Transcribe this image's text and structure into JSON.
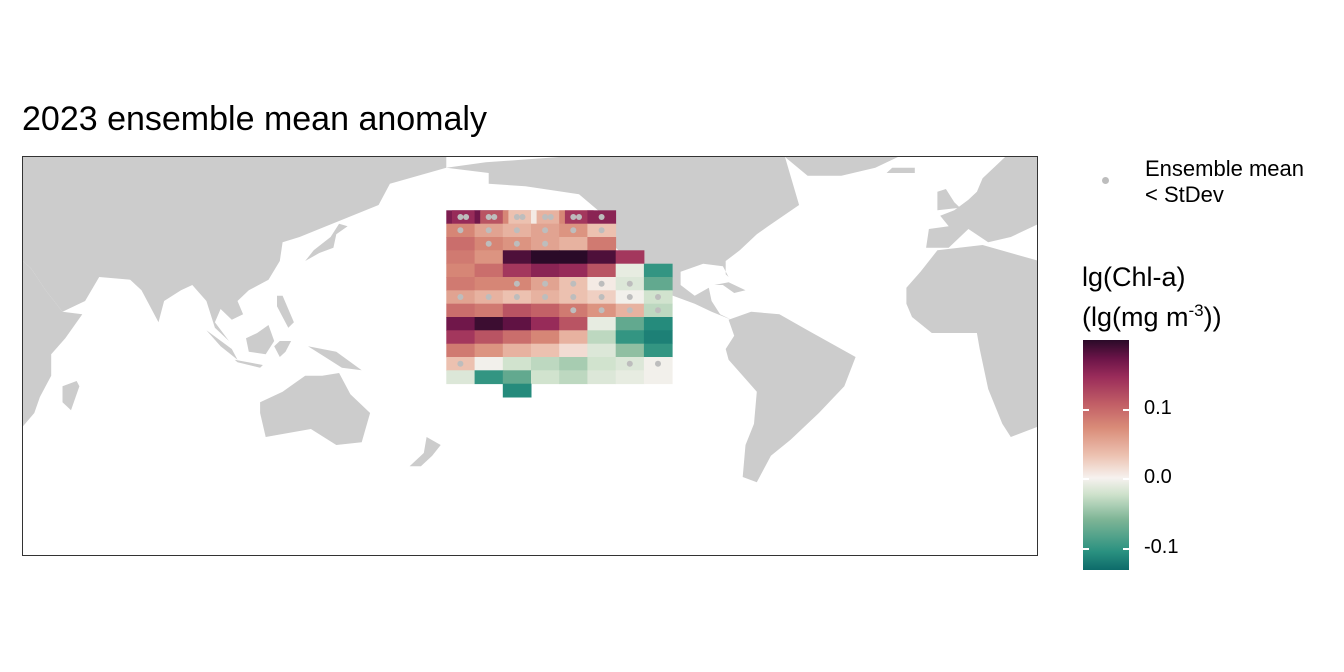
{
  "title": "2023 ensemble mean anomaly",
  "legend": {
    "point_label_line1": "Ensemble mean",
    "point_label_line2": "< StDev",
    "point_color": "#bdbdbd"
  },
  "colorbar": {
    "title_line1": "lg(Chl-a)",
    "title_line2_pre": "(lg(mg m",
    "title_line2_sup": "-3",
    "title_line2_post": "))",
    "ticks": [
      "0.1",
      "0.0",
      "-0.1"
    ],
    "palette": [
      "#0d6b6a",
      "#2a9180",
      "#7eb596",
      "#cfe2cc",
      "#f6f2ef",
      "#ecc1b0",
      "#d98b78",
      "#c25f66",
      "#9a2c5a",
      "#6b1448",
      "#2a0a28"
    ],
    "range": [
      -0.16,
      0.2
    ]
  },
  "chart_data": {
    "type": "heatmap",
    "title": "2023 ensemble mean anomaly",
    "projection": "Pacific-centred world map (longitude 30°E to 390°E)",
    "land_color": "#cccccc",
    "value_label": "lg(Chl-a) (lg(mg m-3))",
    "ticks": [
      0.1,
      0.0,
      -0.1
    ],
    "clim": [
      -0.16,
      0.2
    ],
    "stipple_meaning": "Ensemble mean < StDev",
    "cells": [
      [
        -180,
        45,
        0.15,
        true
      ],
      [
        -178,
        45,
        0.13,
        true
      ],
      [
        -170,
        45,
        0.16,
        true
      ],
      [
        -168,
        45,
        0.1,
        true
      ],
      [
        -160,
        45,
        0.06,
        true
      ],
      [
        -158,
        45,
        0.02,
        true
      ],
      [
        -150,
        45,
        -0.01,
        true
      ],
      [
        -148,
        45,
        0.03,
        true
      ],
      [
        -140,
        45,
        0.06,
        true
      ],
      [
        -138,
        45,
        0.12,
        true
      ],
      [
        -130,
        45,
        0.14,
        true
      ],
      [
        -180,
        40,
        0.06,
        true
      ],
      [
        -170,
        40,
        0.04,
        true
      ],
      [
        -160,
        40,
        0.03,
        true
      ],
      [
        -150,
        40,
        0.04,
        true
      ],
      [
        -140,
        40,
        0.05,
        true
      ],
      [
        -130,
        40,
        0.02,
        true
      ],
      [
        -180,
        35,
        0.08,
        false
      ],
      [
        -170,
        35,
        0.06,
        true
      ],
      [
        -160,
        35,
        0.05,
        true
      ],
      [
        -150,
        35,
        0.04,
        true
      ],
      [
        -140,
        35,
        0.03,
        false
      ],
      [
        -130,
        35,
        0.07,
        false
      ],
      [
        -180,
        30,
        0.07,
        false
      ],
      [
        -170,
        30,
        0.05,
        false
      ],
      [
        -160,
        30,
        0.18,
        false
      ],
      [
        -150,
        30,
        0.2,
        false
      ],
      [
        -140,
        30,
        0.2,
        false
      ],
      [
        -130,
        30,
        0.18,
        false
      ],
      [
        -120,
        30,
        0.12,
        false
      ],
      [
        -180,
        25,
        0.06,
        false
      ],
      [
        -170,
        25,
        0.08,
        false
      ],
      [
        -160,
        25,
        0.12,
        false
      ],
      [
        -150,
        25,
        0.14,
        false
      ],
      [
        -140,
        25,
        0.13,
        false
      ],
      [
        -130,
        25,
        0.1,
        false
      ],
      [
        -120,
        25,
        -0.03,
        false
      ],
      [
        -110,
        25,
        -0.12,
        false
      ],
      [
        -180,
        20,
        0.07,
        false
      ],
      [
        -170,
        20,
        0.06,
        false
      ],
      [
        -160,
        20,
        0.06,
        true
      ],
      [
        -150,
        20,
        0.04,
        true
      ],
      [
        -140,
        20,
        0.02,
        true
      ],
      [
        -130,
        20,
        -0.01,
        true
      ],
      [
        -120,
        20,
        -0.04,
        true
      ],
      [
        -110,
        20,
        -0.1,
        false
      ],
      [
        -180,
        15,
        0.04,
        true
      ],
      [
        -170,
        15,
        0.03,
        true
      ],
      [
        -160,
        15,
        0.02,
        true
      ],
      [
        -150,
        15,
        0.03,
        true
      ],
      [
        -140,
        15,
        0.02,
        true
      ],
      [
        -130,
        15,
        0.01,
        true
      ],
      [
        -120,
        15,
        -0.02,
        true
      ],
      [
        -110,
        15,
        -0.05,
        true
      ],
      [
        -180,
        10,
        0.08,
        false
      ],
      [
        -170,
        10,
        0.07,
        false
      ],
      [
        -160,
        10,
        0.1,
        false
      ],
      [
        -150,
        10,
        0.09,
        false
      ],
      [
        -140,
        10,
        0.07,
        true
      ],
      [
        -130,
        10,
        0.05,
        true
      ],
      [
        -120,
        10,
        0.03,
        true
      ],
      [
        -110,
        10,
        -0.06,
        true
      ],
      [
        -180,
        5,
        0.16,
        false
      ],
      [
        -170,
        5,
        0.19,
        false
      ],
      [
        -160,
        5,
        0.17,
        false
      ],
      [
        -150,
        5,
        0.13,
        false
      ],
      [
        -140,
        5,
        0.1,
        false
      ],
      [
        -130,
        5,
        -0.03,
        false
      ],
      [
        -120,
        5,
        -0.1,
        false
      ],
      [
        -110,
        5,
        -0.13,
        false
      ],
      [
        -180,
        0,
        0.12,
        false
      ],
      [
        -170,
        0,
        0.1,
        false
      ],
      [
        -160,
        0,
        0.08,
        false
      ],
      [
        -150,
        0,
        0.06,
        false
      ],
      [
        -140,
        0,
        0.03,
        false
      ],
      [
        -130,
        0,
        -0.06,
        false
      ],
      [
        -120,
        0,
        -0.12,
        false
      ],
      [
        -110,
        0,
        -0.14,
        false
      ],
      [
        -180,
        -5,
        0.07,
        false
      ],
      [
        -170,
        -5,
        0.05,
        false
      ],
      [
        -160,
        -5,
        0.03,
        false
      ],
      [
        -150,
        -5,
        0.02,
        false
      ],
      [
        -140,
        -5,
        0.0,
        false
      ],
      [
        -130,
        -5,
        -0.04,
        false
      ],
      [
        -120,
        -5,
        -0.08,
        false
      ],
      [
        -110,
        -5,
        -0.12,
        false
      ],
      [
        -180,
        -10,
        0.02,
        true
      ],
      [
        -170,
        -10,
        -0.02,
        false
      ],
      [
        -160,
        -10,
        -0.05,
        false
      ],
      [
        -150,
        -10,
        -0.06,
        false
      ],
      [
        -140,
        -10,
        -0.07,
        false
      ],
      [
        -130,
        -10,
        -0.05,
        false
      ],
      [
        -120,
        -10,
        -0.04,
        true
      ],
      [
        -110,
        -10,
        -0.02,
        true
      ],
      [
        -180,
        -15,
        -0.04,
        false
      ],
      [
        -170,
        -15,
        -0.12,
        false
      ],
      [
        -160,
        -15,
        -0.1,
        false
      ],
      [
        -150,
        -15,
        -0.05,
        false
      ],
      [
        -140,
        -15,
        -0.06,
        false
      ],
      [
        -130,
        -15,
        -0.04,
        false
      ],
      [
        -120,
        -15,
        -0.03,
        false
      ],
      [
        -110,
        -15,
        -0.02,
        false
      ],
      [
        -160,
        -20,
        -0.13,
        false
      ]
    ]
  }
}
